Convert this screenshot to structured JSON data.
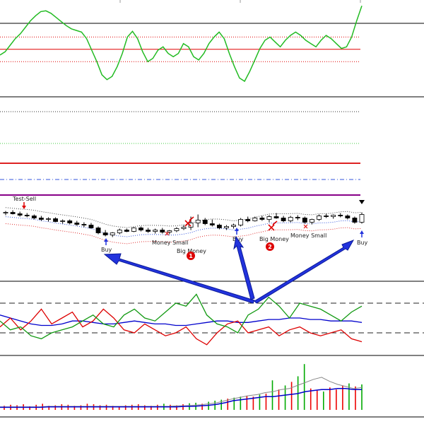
{
  "colors": {
    "bull": "#ffffff",
    "bear": "#000000",
    "candle_outline": "#000000",
    "oscillator": "#22bb22",
    "level_red": "#e00000",
    "band_red": "#e03030",
    "dmi_blue": "#0000cc",
    "dmi_red": "#dd0000",
    "dmi_green": "#119911",
    "volume_green": "#00aa00",
    "volume_red": "#ee0000",
    "volume_avg": "#0000cc",
    "volume_thin": "#888888",
    "arrow_blue": "#2233dd",
    "marker_red": "#dd0000",
    "level_purple": "#880088",
    "dash_blue": "#3355dd",
    "dot_green": "#44cc44",
    "dot_dark": "#333333"
  },
  "signals": {
    "test_sell": "Test-Sell",
    "buy_1": "Buy",
    "buy_2": "Buy",
    "buy_3": "Buy",
    "money_small_1": "Money Small",
    "money_small_2": "Money Small",
    "big_money_1": "Big Money",
    "big_money_2": "Big Money",
    "marker_1": "1",
    "marker_2": "2"
  },
  "chart_data": [
    {
      "type": "line",
      "panel": "oscillator",
      "series": [
        {
          "values": [
            38,
            42,
            50,
            58,
            64,
            72,
            80,
            86,
            91,
            92,
            89,
            84,
            79,
            74,
            70,
            68,
            66,
            58,
            44,
            30,
            14,
            8,
            12,
            24,
            40,
            60,
            67,
            58,
            42,
            30,
            34,
            44,
            48,
            40,
            36,
            40,
            52,
            48,
            36,
            32,
            40,
            52,
            60,
            66,
            58,
            40,
            24,
            10,
            6,
            18,
            32,
            46,
            56,
            60,
            54,
            48,
            56,
            62,
            66,
            62,
            56,
            52,
            48,
            56,
            62,
            58,
            52,
            46,
            48,
            60,
            80,
            98
          ]
        }
      ],
      "levels": [
        30,
        45,
        60
      ]
    },
    {
      "type": "table",
      "panel": "price-candles",
      "columns": [
        "open",
        "high",
        "low",
        "close"
      ],
      "rows": [
        [
          1.31,
          1.316,
          1.304,
          1.312
        ],
        [
          1.312,
          1.318,
          1.306,
          1.308
        ],
        [
          1.308,
          1.314,
          1.3,
          1.304
        ],
        [
          1.304,
          1.31,
          1.298,
          1.302
        ],
        [
          1.302,
          1.306,
          1.292,
          1.296
        ],
        [
          1.296,
          1.302,
          1.288,
          1.292
        ],
        [
          1.292,
          1.298,
          1.286,
          1.294
        ],
        [
          1.294,
          1.298,
          1.284,
          1.286
        ],
        [
          1.286,
          1.292,
          1.28,
          1.288
        ],
        [
          1.288,
          1.292,
          1.278,
          1.282
        ],
        [
          1.282,
          1.288,
          1.274,
          1.278
        ],
        [
          1.278,
          1.284,
          1.27,
          1.276
        ],
        [
          1.276,
          1.282,
          1.266,
          1.268
        ],
        [
          1.268,
          1.272,
          1.25,
          1.254
        ],
        [
          1.254,
          1.262,
          1.244,
          1.248
        ],
        [
          1.248,
          1.256,
          1.242,
          1.254
        ],
        [
          1.254,
          1.266,
          1.25,
          1.262
        ],
        [
          1.262,
          1.266,
          1.256,
          1.258
        ],
        [
          1.258,
          1.27,
          1.256,
          1.268
        ],
        [
          1.268,
          1.272,
          1.258,
          1.262
        ],
        [
          1.262,
          1.268,
          1.254,
          1.258
        ],
        [
          1.258,
          1.266,
          1.252,
          1.262
        ],
        [
          1.262,
          1.268,
          1.252,
          1.256
        ],
        [
          1.256,
          1.262,
          1.25,
          1.26
        ],
        [
          1.26,
          1.27,
          1.256,
          1.266
        ],
        [
          1.266,
          1.276,
          1.262,
          1.27
        ],
        [
          1.27,
          1.3,
          1.262,
          1.282
        ],
        [
          1.282,
          1.306,
          1.27,
          1.29
        ],
        [
          1.29,
          1.296,
          1.276,
          1.28
        ],
        [
          1.28,
          1.292,
          1.272,
          1.276
        ],
        [
          1.276,
          1.28,
          1.264,
          1.268
        ],
        [
          1.268,
          1.276,
          1.262,
          1.272
        ],
        [
          1.272,
          1.28,
          1.266,
          1.276
        ],
        [
          1.276,
          1.296,
          1.272,
          1.292
        ],
        [
          1.292,
          1.3,
          1.284,
          1.288
        ],
        [
          1.288,
          1.3,
          1.286,
          1.296
        ],
        [
          1.296,
          1.302,
          1.288,
          1.292
        ],
        [
          1.292,
          1.304,
          1.284,
          1.3
        ],
        [
          1.3,
          1.31,
          1.294,
          1.296
        ],
        [
          1.296,
          1.302,
          1.284,
          1.288
        ],
        [
          1.288,
          1.302,
          1.284,
          1.298
        ],
        [
          1.298,
          1.304,
          1.29,
          1.296
        ],
        [
          1.296,
          1.3,
          1.28,
          1.284
        ],
        [
          1.284,
          1.294,
          1.278,
          1.292
        ],
        [
          1.292,
          1.306,
          1.288,
          1.302
        ],
        [
          1.302,
          1.308,
          1.296,
          1.3
        ],
        [
          1.3,
          1.306,
          1.294,
          1.304
        ],
        [
          1.304,
          1.31,
          1.298,
          1.302
        ],
        [
          1.302,
          1.306,
          1.292,
          1.296
        ],
        [
          1.296,
          1.3,
          1.28,
          1.284
        ],
        [
          1.284,
          1.312,
          1.28,
          1.306
        ]
      ]
    },
    {
      "type": "line",
      "panel": "dmi",
      "series": [
        {
          "values": [
            22,
            20,
            18,
            16,
            15,
            15,
            16,
            18,
            18,
            17,
            16,
            16,
            17,
            18,
            17,
            16,
            16,
            15,
            15,
            16,
            17,
            18,
            18,
            17,
            17,
            18,
            19,
            19,
            20,
            20,
            19,
            19,
            18,
            18,
            18,
            17
          ]
        },
        {
          "values": [
            14,
            20,
            12,
            18,
            26,
            16,
            20,
            24,
            14,
            18,
            26,
            20,
            12,
            10,
            16,
            12,
            8,
            10,
            14,
            6,
            2,
            10,
            16,
            18,
            10,
            12,
            14,
            8,
            12,
            14,
            10,
            8,
            10,
            12,
            6,
            4
          ]
        },
        {
          "values": [
            18,
            12,
            14,
            8,
            6,
            10,
            12,
            14,
            18,
            22,
            16,
            14,
            22,
            26,
            20,
            18,
            24,
            30,
            28,
            36,
            22,
            16,
            14,
            10,
            22,
            26,
            34,
            28,
            20,
            30,
            28,
            26,
            22,
            18,
            24,
            28
          ]
        }
      ],
      "levels": [
        10,
        30
      ]
    },
    {
      "type": "bar",
      "panel": "volume",
      "values": [
        8,
        10,
        9,
        11,
        7,
        10,
        12,
        8,
        9,
        11,
        10,
        8,
        9,
        12,
        11,
        9,
        10,
        8,
        7,
        9,
        10,
        11,
        9,
        8,
        10,
        12,
        10,
        9,
        11,
        13,
        14,
        12,
        16,
        18,
        20,
        22,
        24,
        26,
        28,
        26,
        30,
        32,
        58,
        40,
        48,
        55,
        66,
        90,
        42,
        38,
        36,
        44,
        40,
        48,
        52,
        46,
        50
      ],
      "bar_colors": [
        "red",
        "red",
        "red",
        "red",
        "red",
        "red",
        "red",
        "red",
        "red",
        "red",
        "red",
        "red",
        "red",
        "red",
        "red",
        "red",
        "red",
        "red",
        "red",
        "red",
        "red",
        "red",
        "red",
        "red",
        "red",
        "green",
        "red",
        "red",
        "red",
        "green",
        "green",
        "red",
        "green",
        "green",
        "green",
        "red",
        "green",
        "green",
        "red",
        "red",
        "green",
        "red",
        "green",
        "red",
        "green",
        "red",
        "green",
        "green",
        "red",
        "red",
        "green",
        "red",
        "red",
        "red",
        "green",
        "red",
        "green"
      ],
      "series": [
        {
          "values": [
            5,
            5,
            5,
            5,
            5,
            5,
            6,
            6,
            6,
            6,
            6,
            6,
            6,
            6,
            6,
            6,
            6,
            6,
            6,
            6,
            6,
            6,
            6,
            7,
            7,
            8,
            9,
            11,
            14,
            18,
            20,
            22,
            24,
            26,
            26,
            28,
            30,
            32,
            36,
            38,
            40,
            40,
            42,
            42,
            40,
            40
          ]
        },
        {
          "values": [
            6,
            6,
            6,
            6,
            6,
            6,
            7,
            7,
            7,
            7,
            7,
            7,
            7,
            7,
            7,
            7,
            7,
            7,
            7,
            7,
            7,
            7,
            8,
            8,
            9,
            10,
            12,
            14,
            18,
            22,
            25,
            28,
            30,
            34,
            36,
            40,
            42,
            48,
            54,
            60,
            64,
            56,
            50,
            46,
            42,
            44
          ]
        }
      ]
    }
  ]
}
